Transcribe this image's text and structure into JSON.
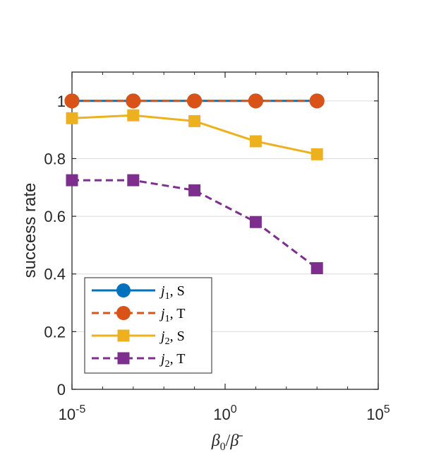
{
  "chart_data": {
    "type": "line",
    "x_scale": "log",
    "x": [
      1e-05,
      0.001,
      0.1,
      10,
      1000
    ],
    "xlim": [
      1e-05,
      100000
    ],
    "ylim": [
      0,
      1.1
    ],
    "xticks": [
      {
        "value": 1e-05,
        "base": "10",
        "exp": "-5"
      },
      {
        "value": 1,
        "base": "10",
        "exp": "0"
      },
      {
        "value": 100000,
        "base": "10",
        "exp": "5"
      }
    ],
    "yticks": [
      {
        "value": 0,
        "label": "0"
      },
      {
        "value": 0.2,
        "label": "0.2"
      },
      {
        "value": 0.4,
        "label": "0.4"
      },
      {
        "value": 0.6,
        "label": "0.6"
      },
      {
        "value": 0.8,
        "label": "0.8"
      },
      {
        "value": 1,
        "label": "1"
      }
    ],
    "ylabel": "success rate",
    "xlabel_parts": {
      "beta": "β",
      "sub": "0",
      "slash": "/",
      "beta_bar": "β̄"
    },
    "grid": "horizontal",
    "legend_position": "bottom-left",
    "series": [
      {
        "name_var": "j",
        "name_sub": "1",
        "name_suffix": ", S",
        "color": "#0072BD",
        "dash": "solid",
        "marker": "circle",
        "values": [
          1,
          1,
          1,
          1,
          1
        ]
      },
      {
        "name_var": "j",
        "name_sub": "1",
        "name_suffix": ", T",
        "color": "#D95319",
        "dash": "dashed",
        "marker": "circle",
        "values": [
          1,
          1,
          1,
          1,
          1
        ]
      },
      {
        "name_var": "j",
        "name_sub": "2",
        "name_suffix": ", S",
        "color": "#EDB120",
        "dash": "solid",
        "marker": "square",
        "values": [
          0.94,
          0.95,
          0.93,
          0.86,
          0.815
        ]
      },
      {
        "name_var": "j",
        "name_sub": "2",
        "name_suffix": ", T",
        "color": "#7E2F8E",
        "dash": "dashed",
        "marker": "square",
        "values": [
          0.725,
          0.725,
          0.69,
          0.58,
          0.42
        ]
      }
    ]
  }
}
